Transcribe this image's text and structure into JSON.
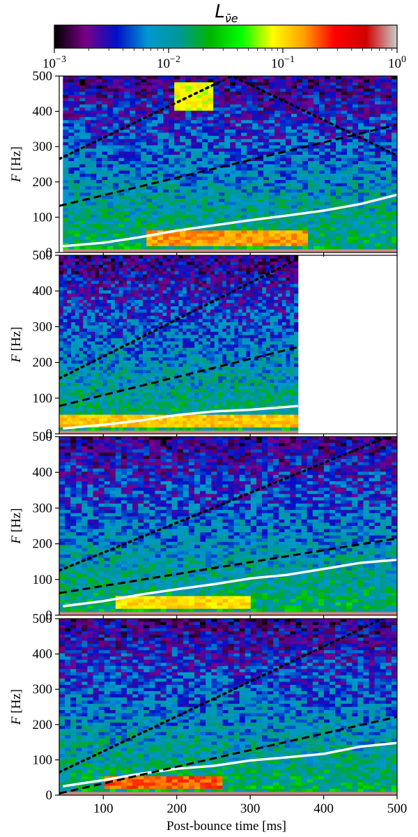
{
  "figure": {
    "colorbar": {
      "title": "L",
      "title_sub": "ν̄e",
      "scale": "log",
      "range": [
        0.001,
        1
      ],
      "ticks": [
        {
          "base": "10",
          "exp": "−3",
          "value": 0.001
        },
        {
          "base": "10",
          "exp": "−2",
          "value": 0.01
        },
        {
          "base": "10",
          "exp": "−1",
          "value": 0.1
        },
        {
          "base": "10",
          "exp": "0",
          "value": 1
        }
      ],
      "colormap_stops": [
        "#000000",
        "#7a0088",
        "#0010c8",
        "#0098d0",
        "#009898",
        "#00b400",
        "#00ff00",
        "#ffff00",
        "#ffa000",
        "#ff0000",
        "#d00000",
        "#cccccc"
      ]
    },
    "x_axis_label": "Post-bounce time [ms]",
    "x_tick_labels": [
      "100",
      "200",
      "300",
      "400",
      "500"
    ],
    "y_axis_label_italic": "F",
    "y_axis_label_unit": " [Hz]",
    "y_tick_labels": [
      "0",
      "100",
      "200",
      "300",
      "400",
      "500"
    ],
    "line_colors": {
      "white_line": "#ffffff",
      "dashed": "#000000",
      "dotted": "#000000"
    }
  },
  "chart_data": [
    {
      "type": "heatmap",
      "panel": 1,
      "x_range_ms": [
        40,
        500
      ],
      "data_extent_ms": [
        45,
        500
      ],
      "ylim": [
        0,
        500
      ],
      "xlabel": "",
      "ylabel": "F [Hz]",
      "dashed_line": {
        "x": [
          40,
          500
        ],
        "y": [
          132,
          362
        ]
      },
      "dotted_line": {
        "x": [
          40,
          275,
          500
        ],
        "y": [
          265,
          500,
          275
        ]
      },
      "white_line": {
        "x": [
          45,
          100,
          150,
          200,
          250,
          300,
          350,
          400,
          450,
          500
        ],
        "y": [
          18,
          30,
          45,
          62,
          78,
          90,
          105,
          118,
          135,
          165
        ]
      },
      "bright_regions": [
        {
          "x": [
            200,
            250
          ],
          "y": [
            400,
            480
          ],
          "level": 0.08
        },
        {
          "x": [
            160,
            380
          ],
          "y": [
            15,
            60
          ],
          "level": 0.15
        }
      ]
    },
    {
      "type": "heatmap",
      "panel": 2,
      "x_range_ms": [
        40,
        500
      ],
      "data_extent_ms": [
        40,
        365
      ],
      "ylim": [
        0,
        500
      ],
      "xlabel": "",
      "ylabel": "F [Hz]",
      "dashed_line": {
        "x": [
          40,
          365
        ],
        "y": [
          78,
          243
        ]
      },
      "dotted_line": {
        "x": [
          40,
          365
        ],
        "y": [
          155,
          490
        ]
      },
      "white_line": {
        "x": [
          45,
          100,
          150,
          200,
          250,
          300,
          365
        ],
        "y": [
          15,
          25,
          38,
          50,
          60,
          70,
          80
        ]
      },
      "bright_regions": [
        {
          "x": [
            40,
            365
          ],
          "y": [
            15,
            50
          ],
          "level": 0.12
        }
      ]
    },
    {
      "type": "heatmap",
      "panel": 3,
      "x_range_ms": [
        40,
        500
      ],
      "data_extent_ms": [
        40,
        500
      ],
      "ylim": [
        0,
        500
      ],
      "xlabel": "",
      "ylabel": "F [Hz]",
      "dashed_line": {
        "x": [
          40,
          500
        ],
        "y": [
          62,
          215
        ]
      },
      "dotted_line": {
        "x": [
          40,
          500
        ],
        "y": [
          125,
          510
        ]
      },
      "white_line": {
        "x": [
          45,
          100,
          150,
          200,
          250,
          300,
          350,
          400,
          450,
          500
        ],
        "y": [
          25,
          42,
          60,
          75,
          88,
          100,
          112,
          130,
          148,
          155
        ]
      },
      "bright_regions": [
        {
          "x": [
            120,
            300
          ],
          "y": [
            15,
            55
          ],
          "level": 0.1
        }
      ]
    },
    {
      "type": "heatmap",
      "panel": 4,
      "x_range_ms": [
        40,
        500
      ],
      "data_extent_ms": [
        40,
        500
      ],
      "ylim": [
        0,
        500
      ],
      "xlabel": "Post-bounce time [ms]",
      "ylabel": "F [Hz]",
      "dashed_line": {
        "x": [
          40,
          500
        ],
        "y": [
          5,
          222
        ]
      },
      "dotted_line": {
        "x": [
          40,
          500
        ],
        "y": [
          65,
          520
        ]
      },
      "white_line": {
        "x": [
          45,
          100,
          150,
          200,
          250,
          300,
          350,
          400,
          450,
          500
        ],
        "y": [
          25,
          40,
          58,
          72,
          85,
          95,
          108,
          120,
          138,
          150
        ]
      },
      "bright_regions": [
        {
          "x": [
            100,
            260
          ],
          "y": [
            15,
            55
          ],
          "level": 0.2
        }
      ]
    }
  ]
}
